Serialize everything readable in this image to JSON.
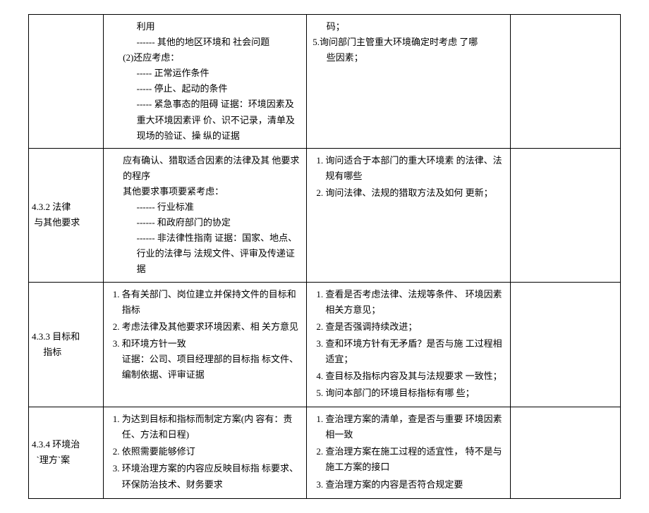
{
  "rows": [
    {
      "id_html": "",
      "col_b_html": "<span class='indent2'>利用</span><span class='indent2'>------ 其他的地区环境和 社会问题</span><span class='indent1'>(2)还应考虑：</span><span class='indent2'>----- 正常运作条件</span><span class='indent2'>----- 停止、起动的条件</span><span class='indent2'>----- 紧急事态的阻碍 证据：环境因素及重大环境因素评 价、识不记录，清单及现场的验证、操 纵的证据</span>",
      "col_c_html": "<span class='indent1'>码；</span>5.询问部门主管重大环境确定时考虑 了哪<span class='indent1'>些因素；</span>",
      "col_d_html": ""
    },
    {
      "id_html": "4.3.2 法律<br>&nbsp;与其他要求",
      "col_b_html": "<span class='indent1'>应有确认、猎取适合因素的法律及其 他要求的程序</span><span class='indent1'>其他要求事项要紧考虑：</span><span class='indent2'>------ 行业标准</span><span class='indent2'>------ 和政府部门的协定</span><span class='indent2'>------ 非法律性指南 证据：国家、地点、行业的法律与 法规文件、评审及传递证据</span>",
      "col_c_html": "<ol class='num'><li>询问适合于本部门的重大环境素 的法律、法规有哪些</li><li>询问法律、法规的猎取方法及如何 更新；</li></ol>",
      "col_d_html": ""
    },
    {
      "id_html": "4.3.3 目标和<br>&nbsp;&nbsp;&nbsp;&nbsp;&nbsp;指标",
      "col_b_html": "<ol class='num'><li>各有关部门、岗位建立并保持文件的目标和指标</li><li>考虑法律及其他要求环境因素、相 关方意见</li><li>和环境方针一致<br>证据：公司、项目经理部的目标指 标文件、编制依据、评审证据</li></ol>",
      "col_c_html": "<ol class='num'><li>查看是否考虑法律、法规等条件、 环境因素相关方意见；</li><li>查是否强调持续改进；</li><li>查和环境方针有无矛盾？是否与施 工过程相适宜；</li><li>查目标及指标内容及其与法规要求 一致性；</li><li>询问本部门的环境目标指标有哪 些；</li></ol>",
      "col_d_html": ""
    },
    {
      "id_html": "4.3.4 环境治<br>&nbsp;&nbsp;`理方`案",
      "col_b_html": "<ol class='num'><li>为达到目标和指标而制定方案(内 容有：责任、方法和日程)</li><li>依照需要能够修订</li><li>环境治理方案的内容应反映目标指 标要求、环保防治技术、财务要求</li></ol>",
      "col_c_html": "<ol class='num'><li>查治理方案的清单，查是否与重要 环境因素相一致</li><li>查治理方案在施工过程的适宜性， 特不是与施工方案的接口</li><li>查治理方案的内容是否符合规定要</li></ol>",
      "col_d_html": ""
    }
  ]
}
